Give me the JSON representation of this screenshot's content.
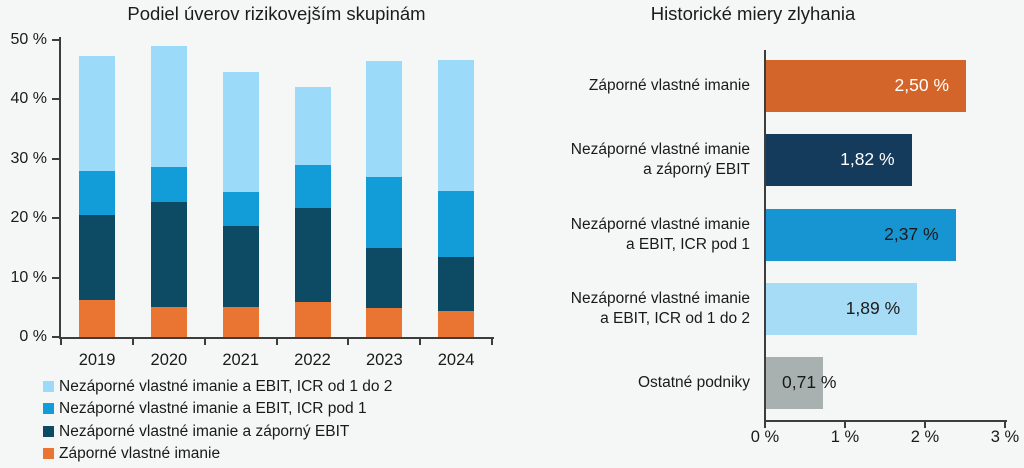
{
  "page": {
    "background": "#f5f6f6",
    "text_color": "#1a1a1a",
    "axis_color": "#3d3d3d"
  },
  "chart_data": [
    {
      "type": "bar",
      "variant": "stacked-vertical",
      "title": "Podiel úverov rizikovejším skupinám",
      "categories": [
        "2019",
        "2020",
        "2021",
        "2022",
        "2023",
        "2024"
      ],
      "series": [
        {
          "name": "Záporné vlastné imanie",
          "color": "#ea7431",
          "values": [
            6.2,
            5.0,
            5.0,
            5.9,
            4.9,
            4.4
          ]
        },
        {
          "name": "Nezáporné vlastné imanie a záporný EBIT",
          "color": "#0d4a63",
          "values": [
            14.3,
            17.7,
            13.7,
            15.8,
            10.1,
            9.0
          ]
        },
        {
          "name": "Nezáporné vlastné imanie a EBIT, ICR pod 1",
          "color": "#129cd8",
          "values": [
            7.4,
            5.9,
            5.7,
            7.2,
            11.9,
            11.2
          ]
        },
        {
          "name": "Nezáporné vlastné imanie a EBIT, ICR od 1 do 2",
          "color": "#9bdaf8",
          "values": [
            19.3,
            20.3,
            20.1,
            13.2,
            19.5,
            21.9
          ]
        }
      ],
      "stack_totals": [
        47.2,
        48.9,
        44.5,
        42.1,
        46.4,
        46.5
      ],
      "ylim": [
        0,
        50
      ],
      "yticks": [
        "0 %",
        "10 %",
        "20 %",
        "30 %",
        "40 %",
        "50 %"
      ],
      "grid": false,
      "legend_position": "bottom-left"
    },
    {
      "type": "bar",
      "variant": "horizontal",
      "title": "Historické miery zlyhania",
      "categories": [
        [
          "Záporné vlastné imanie"
        ],
        [
          "Nezáporné vlastné imanie",
          "a záporný EBIT"
        ],
        [
          "Nezáporné vlastné imanie",
          "a EBIT, ICR pod 1"
        ],
        [
          "Nezáporné vlastné imanie",
          "a EBIT, ICR od 1 do 2"
        ],
        [
          "Ostatné podniky"
        ]
      ],
      "values": [
        2.5,
        1.82,
        2.37,
        1.89,
        0.71
      ],
      "value_labels": [
        "2,50 %",
        "1,82 %",
        "2,37 %",
        "1,89 %",
        "0,71 %"
      ],
      "bar_colors": [
        "#d4652a",
        "#143a5c",
        "#1795d2",
        "#a6dcf5",
        "#a9b0b0"
      ],
      "value_label_colors": [
        "#ffffff",
        "#ffffff",
        "#1a1a1a",
        "#1a1a1a",
        "#1a1a1a"
      ],
      "xlim": [
        0,
        3
      ],
      "xticks": [
        "0 %",
        "1 %",
        "2 %",
        "3 %"
      ],
      "grid": false,
      "legend_position": "none"
    }
  ]
}
